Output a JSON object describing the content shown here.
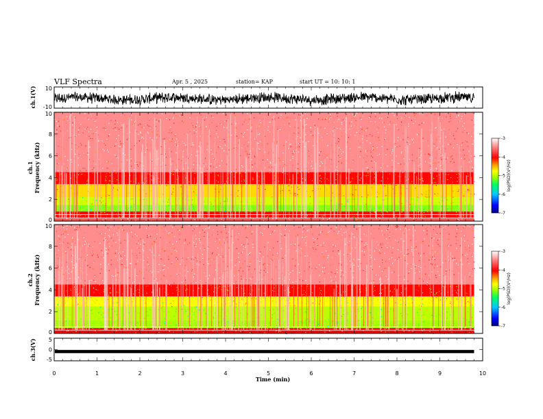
{
  "header": {
    "title": "VLF Spectra",
    "date": "Apr. 5 , 2025",
    "station": "station= KAP",
    "start": "start UT = 10: 10: 1"
  },
  "panels": {
    "ch1_wave": {
      "ylabel": "ch.1(V)",
      "ticks": [
        "10",
        "-10"
      ]
    },
    "ch1_spec": {
      "ylabel_line1": "ch.1",
      "ylabel_line2": "Frequency (kHz)",
      "ticks": [
        "0",
        "2",
        "4",
        "6",
        "8",
        "10"
      ]
    },
    "ch2_spec": {
      "ylabel_line1": "ch.2",
      "ylabel_line2": "Frequency (kHz)",
      "ticks": [
        "0",
        "2",
        "4",
        "6",
        "8",
        "10"
      ]
    },
    "ch3_wave": {
      "ylabel": "ch.3(V)",
      "ticks": [
        "5",
        "0",
        "-5"
      ]
    }
  },
  "colorbar": {
    "label": "log(PSD)(V²/Hz)",
    "ticks": [
      "-3",
      "-4",
      "-5",
      "-6",
      "-7"
    ],
    "colors": [
      "#000080",
      "#0000ff",
      "#00c8ff",
      "#00ff60",
      "#a0ff00",
      "#ffff00",
      "#ffa000",
      "#ff0000",
      "#ff8080",
      "#ffffff"
    ]
  },
  "chart_data": {
    "type": "heatmap",
    "xlabel": "Time (min)",
    "xlim": [
      0,
      10
    ],
    "x_ticks": [
      "0",
      "1",
      "2",
      "3",
      "4",
      "5",
      "6",
      "7",
      "8",
      "9",
      "10"
    ],
    "data_end_min": 9.8,
    "ch1_ylim_V": [
      -10,
      10
    ],
    "ch3_ylim_V": [
      -5,
      5
    ],
    "spec_ylim_kHz": [
      0,
      10
    ],
    "clim_logpsd": [
      -7,
      -3
    ],
    "ch1_spectrum_bands": [
      {
        "f_from_kHz": 0,
        "f_to_kHz": 0.3,
        "log_psd": -3.6
      },
      {
        "f_from_kHz": 0.3,
        "f_to_kHz": 0.9,
        "log_psd": -3.9
      },
      {
        "f_from_kHz": 0.9,
        "f_to_kHz": 1.5,
        "log_psd": -5.3
      },
      {
        "f_from_kHz": 1.5,
        "f_to_kHz": 2.2,
        "log_psd": -5.0
      },
      {
        "f_from_kHz": 2.2,
        "f_to_kHz": 3.4,
        "log_psd": -4.6
      },
      {
        "f_from_kHz": 3.4,
        "f_to_kHz": 4.5,
        "log_psd": -3.9
      },
      {
        "f_from_kHz": 4.5,
        "f_to_kHz": 10,
        "log_psd": -3.4
      }
    ],
    "ch2_spectrum_bands": [
      {
        "f_from_kHz": 0,
        "f_to_kHz": 0.5,
        "log_psd": -3.9
      },
      {
        "f_from_kHz": 0.5,
        "f_to_kHz": 1.2,
        "log_psd": -5.2
      },
      {
        "f_from_kHz": 1.2,
        "f_to_kHz": 2.5,
        "log_psd": -5.1
      },
      {
        "f_from_kHz": 2.5,
        "f_to_kHz": 3.4,
        "log_psd": -4.8
      },
      {
        "f_from_kHz": 3.4,
        "f_to_kHz": 4.5,
        "log_psd": -3.9
      },
      {
        "f_from_kHz": 4.5,
        "f_to_kHz": 10,
        "log_psd": -3.4
      }
    ],
    "ch1_waveform_range_V": [
      -7,
      5
    ],
    "ch3_waveform_range_V": [
      -1.6,
      -0.2
    ]
  }
}
